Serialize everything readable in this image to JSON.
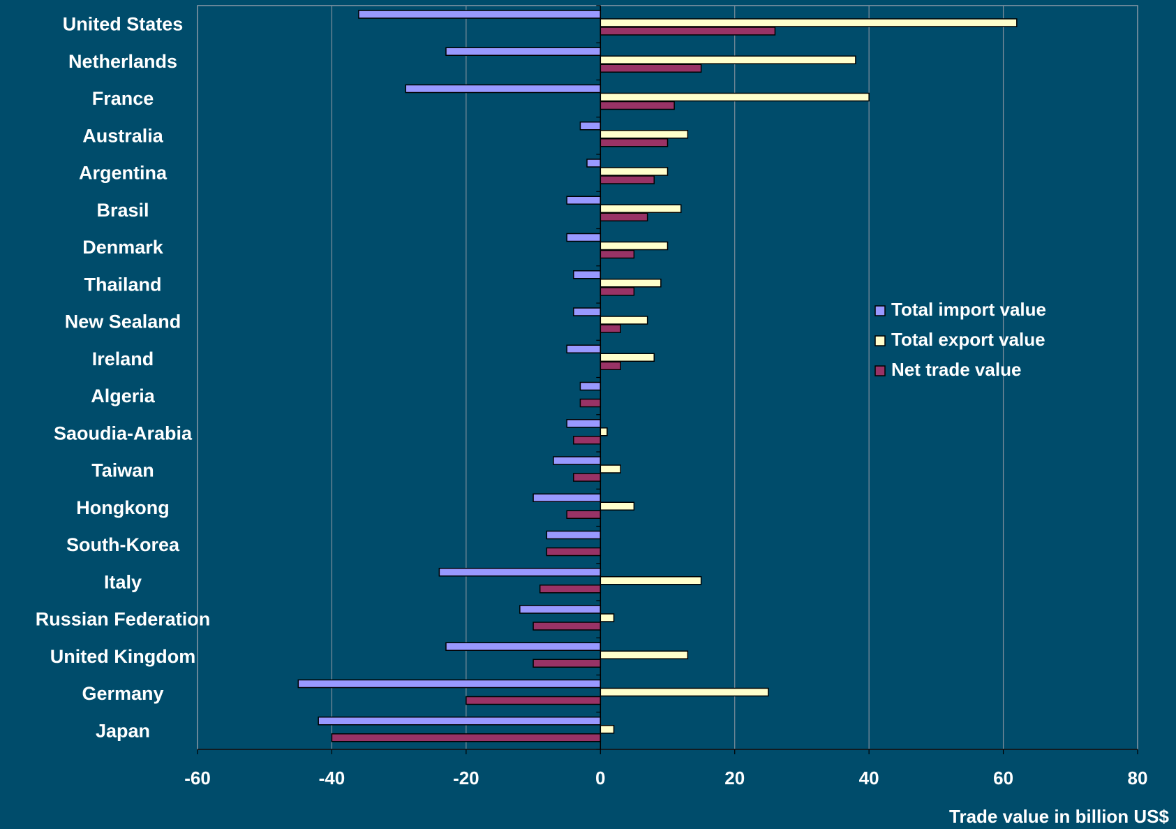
{
  "chart_data": {
    "type": "bar",
    "orientation": "horizontal",
    "title": "",
    "xlabel": "Trade value in billion US$",
    "ylabel": "",
    "xlim": [
      -60,
      80
    ],
    "xticks": [
      -60,
      -40,
      -20,
      0,
      20,
      40,
      60,
      80
    ],
    "grid": true,
    "legend_position": "right",
    "categories": [
      "United States",
      "Netherlands",
      "France",
      "Australia",
      "Argentina",
      "Brasil",
      "Denmark",
      "Thailand",
      "New Sealand",
      "Ireland",
      "Algeria",
      "Saoudia-Arabia",
      "Taiwan",
      "Hongkong",
      "South-Korea",
      "Italy",
      "Russian Federation",
      "United Kingdom",
      "Germany",
      "Japan"
    ],
    "series": [
      {
        "name": "Total import value",
        "color": "#9999ff",
        "values": [
          -36,
          -23,
          -29,
          -3,
          -2,
          -5,
          -5,
          -4,
          -4,
          -5,
          -3,
          -5,
          -7,
          -10,
          -8,
          -24,
          -12,
          -23,
          -45,
          -42
        ]
      },
      {
        "name": "Total export value",
        "color": "#ffffcc",
        "values": [
          62,
          38,
          40,
          13,
          10,
          12,
          10,
          9,
          7,
          8,
          0,
          1,
          3,
          5,
          0,
          15,
          2,
          13,
          25,
          2
        ]
      },
      {
        "name": "Net trade value",
        "color": "#993366",
        "values": [
          26,
          15,
          11,
          10,
          8,
          7,
          5,
          5,
          3,
          3,
          -3,
          -4,
          -4,
          -5,
          -8,
          -9,
          -10,
          -10,
          -20,
          -40
        ]
      }
    ]
  }
}
